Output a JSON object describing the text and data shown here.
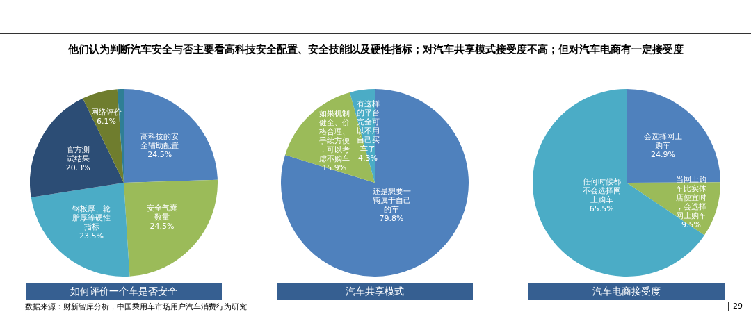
{
  "chart_data": [
    {
      "type": "pie",
      "title": "如何评价一个车是否安全",
      "subtitle": "他们认为判断汽车安全与否主要看高科技安全配置、安全技能以及硬性指标；对汽车共享模式接受度不高；但对汽车电商有一定接受度",
      "categories": [
        "高科技的安全辅助配置",
        "安全气囊数量",
        "钢板厚、轮胎厚等硬性指标",
        "官方测试结果",
        "网络评价",
        null
      ],
      "values": [
        24.5,
        24.5,
        23.5,
        20.3,
        6.1,
        1.1
      ],
      "colors": [
        "#4f81bd",
        "#9bbb59",
        "#4bacc6",
        "#2c4d75",
        "#6f7d2e",
        "#2f7f95"
      ],
      "value_labels": [
        "24.5%",
        "24.5%",
        "23.5%",
        "20.3%",
        "6.1%",
        null
      ],
      "annotations": [
        "数据来源：财新智库分析，中国乘用车市场用户汽车消费行为研究"
      ]
    },
    {
      "type": "pie",
      "title": "汽车共享模式",
      "categories": [
        "还是想要一辆属于自己的车",
        "如果机制健全、价格合理、手续方便，可以考虑不购车",
        "有这样的平台完全可以不用自己买车了"
      ],
      "values": [
        79.8,
        15.9,
        4.3
      ],
      "colors": [
        "#4f81bd",
        "#9bbb59",
        "#4bacc6"
      ],
      "value_labels": [
        "79.8%",
        "15.9%",
        "4.3%"
      ]
    },
    {
      "type": "pie",
      "title": "汽车电商接受度",
      "categories": [
        "会选择网上购车",
        "当网上购车比实体店便宜时，会选择网上购车",
        "任何时候都不会选择网上购车"
      ],
      "values": [
        24.9,
        9.5,
        65.5
      ],
      "colors": [
        "#4f81bd",
        "#9bbb59",
        "#4bacc6"
      ],
      "value_labels": [
        "24.9%",
        "9.5%",
        "65.5%"
      ],
      "annotations": [
        "29"
      ]
    }
  ]
}
